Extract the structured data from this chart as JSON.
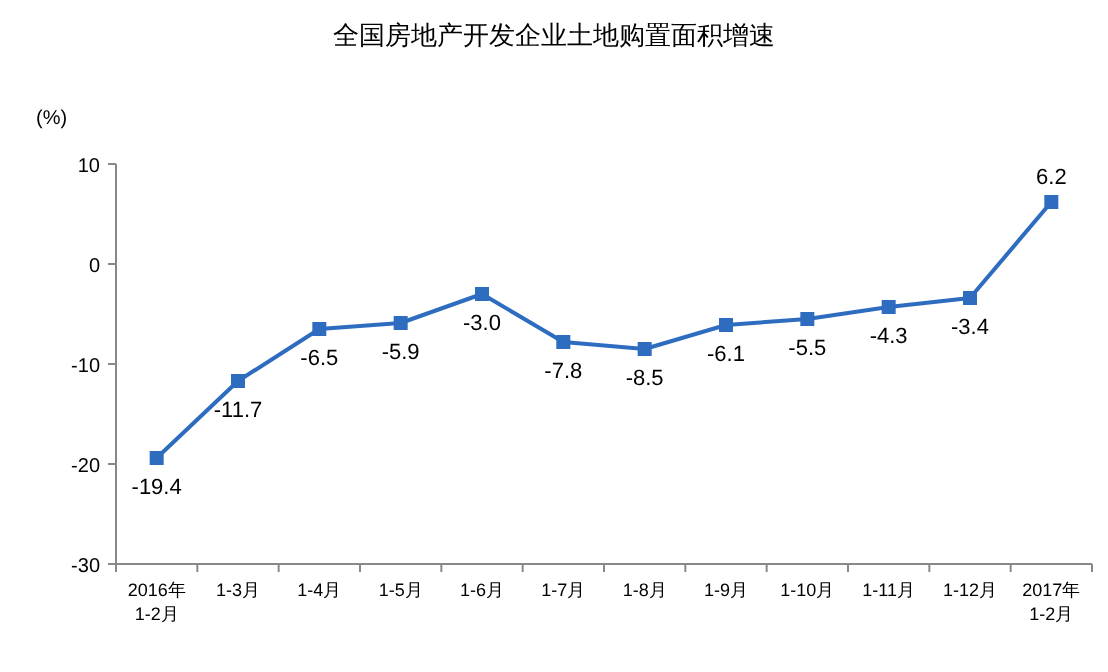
{
  "chart_data": {
    "type": "line",
    "title": "全国房地产开发企业土地购置面积增速",
    "ylabel": "(%)",
    "categories": [
      "2016年\n1-2月",
      "1-3月",
      "1-4月",
      "1-5月",
      "1-6月",
      "1-7月",
      "1-8月",
      "1-9月",
      "1-10月",
      "1-11月",
      "1-12月",
      "2017年\n1-2月"
    ],
    "series": [
      {
        "color": "#2e6cc0",
        "values": [
          -19.4,
          -11.7,
          -6.5,
          -5.9,
          -3.0,
          -7.8,
          -8.5,
          -6.1,
          -5.5,
          -4.3,
          -3.4,
          6.2
        ],
        "value_labels": [
          "-19.4",
          "-11.7",
          "-6.5",
          "-5.9",
          "-3.0",
          "-7.8",
          "-8.5",
          "-6.1",
          "-5.5",
          "-4.3",
          "-3.4",
          "6.2"
        ]
      }
    ],
    "ylim": [
      -30,
      10
    ],
    "yticks": [
      -30,
      -20,
      -10,
      0,
      10
    ],
    "marker": "square",
    "line_style": "solid",
    "grid": false
  }
}
